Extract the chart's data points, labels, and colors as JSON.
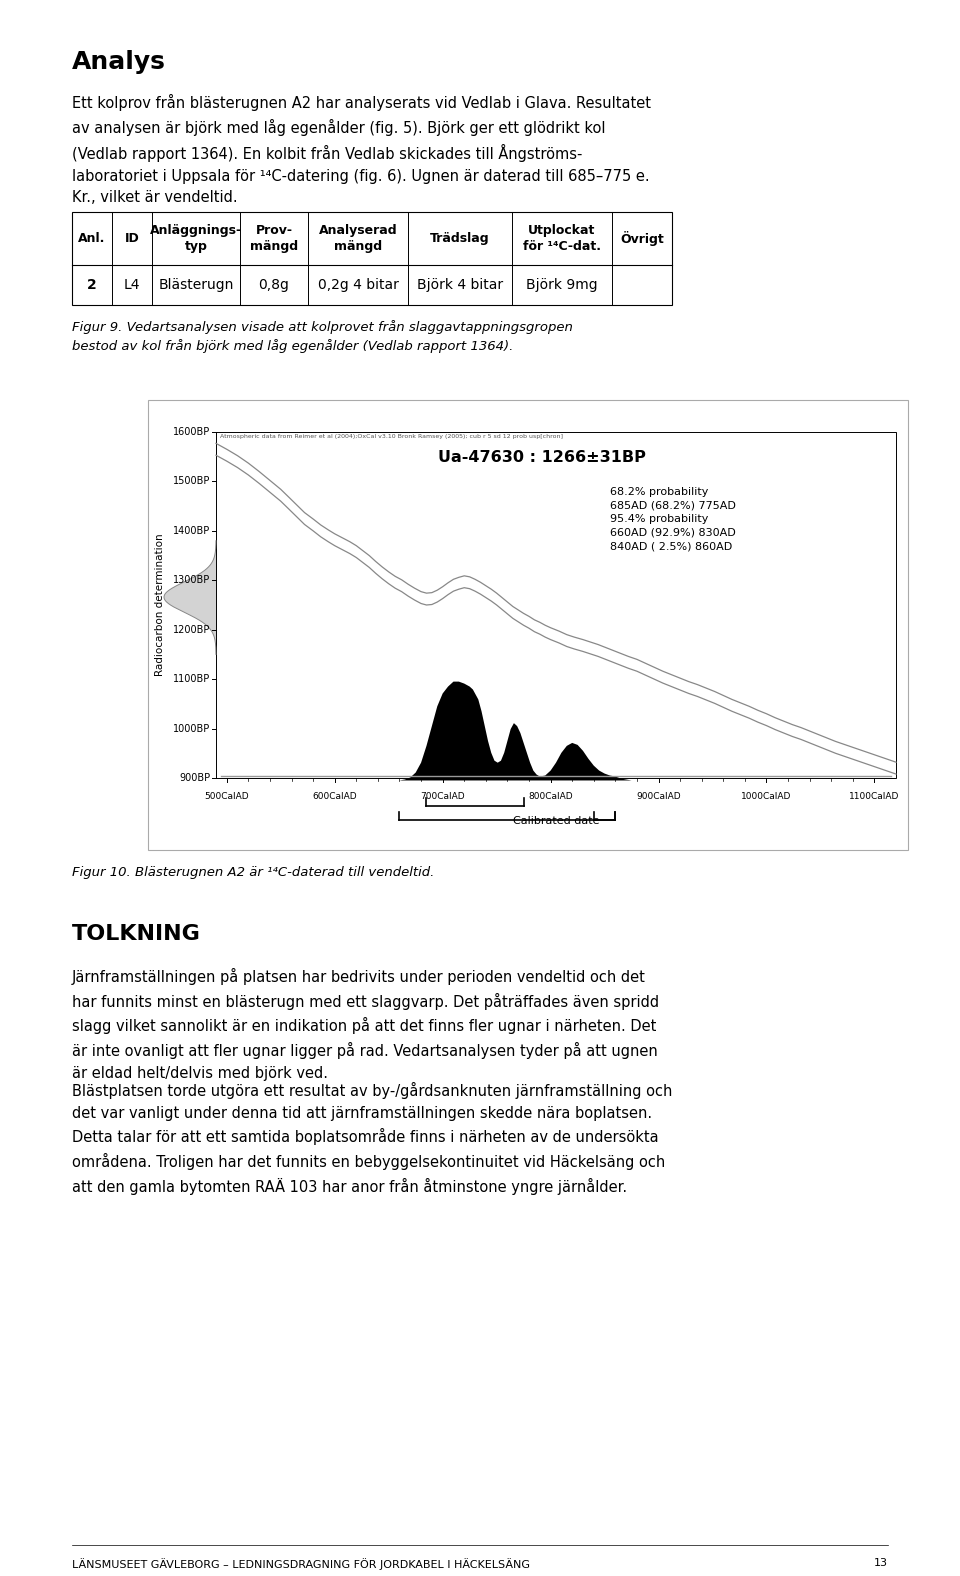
{
  "page_bg": "#ffffff",
  "title": "Analys",
  "title_fontsize": 18,
  "body_text_1": "Ett kolprov från blästerugnen A2 har analyserats vid Vedlab i Glava. Resultatet\nav analysen är björk med låg egenålder (fig. 5). Björk ger ett glödrikt kol\n(Vedlab rapport 1364). En kolbit från Vedlab skickades till Ångströms-\nlaboratoriet i Uppsala för ¹⁴C-datering (fig. 6). Ugnen är daterad till 685–775 e.\nKr., vilket är vendeltid.",
  "body_fontsize": 10.5,
  "table_headers": [
    "Anl.",
    "ID",
    "Anläggnings-\ntyp",
    "Prov-\nmängd",
    "Analyserad\nmängd",
    "Trädslag",
    "Utplockat\nför ¹⁴C-dat.",
    "Övrigt"
  ],
  "table_row": [
    "2",
    "L4",
    "Blästerugn",
    "0,8g",
    "0,2g 4 bitar",
    "Björk 4 bitar",
    "Björk 9mg",
    ""
  ],
  "table_header_fontsize": 9,
  "table_row_fontsize": 10,
  "figur9_text": "Figur 9. Vedartsanalysen visade att kolprovet från slaggavtappningsgropen\nbestod av kol från björk med låg egenålder (Vedlab rapport 1364).",
  "figur9_fontsize": 9.5,
  "radiocarbon_title": "Ua-47630 : 1266±31BP",
  "radiocarbon_subtitle": "Atmospheric data from Reimer et al (2004);OxCal v3.10 Bronk Ramsey (2005); cub r 5 sd 12 prob usp[chron]",
  "radiocarbon_ylabel": "Radiocarbon determination",
  "radiocarbon_xlabel": "Calibrated date",
  "radiocarbon_xticks": [
    "500CalAD",
    "600CalAD",
    "700CalAD",
    "800CalAD",
    "900CalAD",
    "1000CalAD",
    "1100CalAD"
  ],
  "radiocarbon_yticks": [
    "900BP",
    "1000BP",
    "1100BP",
    "1200BP",
    "1300BP",
    "1400BP",
    "1500BP",
    "1600BP"
  ],
  "prob_text": "68.2% probability\n685AD (68.2%) 775AD\n95.4% probability\n660AD (92.9%) 830AD\n840AD ( 2.5%) 860AD",
  "figur10_text": "Figur 10. Blästerugnen A2 är ¹⁴C-daterad till vendeltid.",
  "figur10_fontsize": 9.5,
  "tolkning_title": "TOLKNING",
  "tolkning_title_fontsize": 16,
  "tolkning_text_1": "Järnframställningen på platsen har bedrivits under perioden vendeltid och det\nhar funnits minst en blästerugn med ett slaggvarp. Det påträffades även spridd\nslagg vilket sannolikt är en indikation på att det finns fler ugnar i närheten. Det\när inte ovanligt att fler ugnar ligger på rad. Vedartsanalysen tyder på att ugnen\när eldad helt/delvis med björk ved.",
  "tolkning_text_2": "Blästplatsen torde utgöra ett resultat av by-/gårdsanknuten järnframställning och\ndet var vanligt under denna tid att järnframställningen skedde nära boplatsen.\nDetta talar för att ett samtida boplatsområde finns i närheten av de undersökta\nområdena. Troligen har det funnits en bebyggelsekontinuitet vid Häckelsäng och\natt den gamla bytomten RAÄ 103 har anor från åtminstone yngre järnålder.",
  "footer_text": "LÄNSMUSEET GÄVLEBORG – LEDNINGSDRAGNING FÖR JORDKABEL I HÄCKELSÄNG",
  "footer_page": "13",
  "footer_fontsize": 8,
  "text_color": "#000000"
}
